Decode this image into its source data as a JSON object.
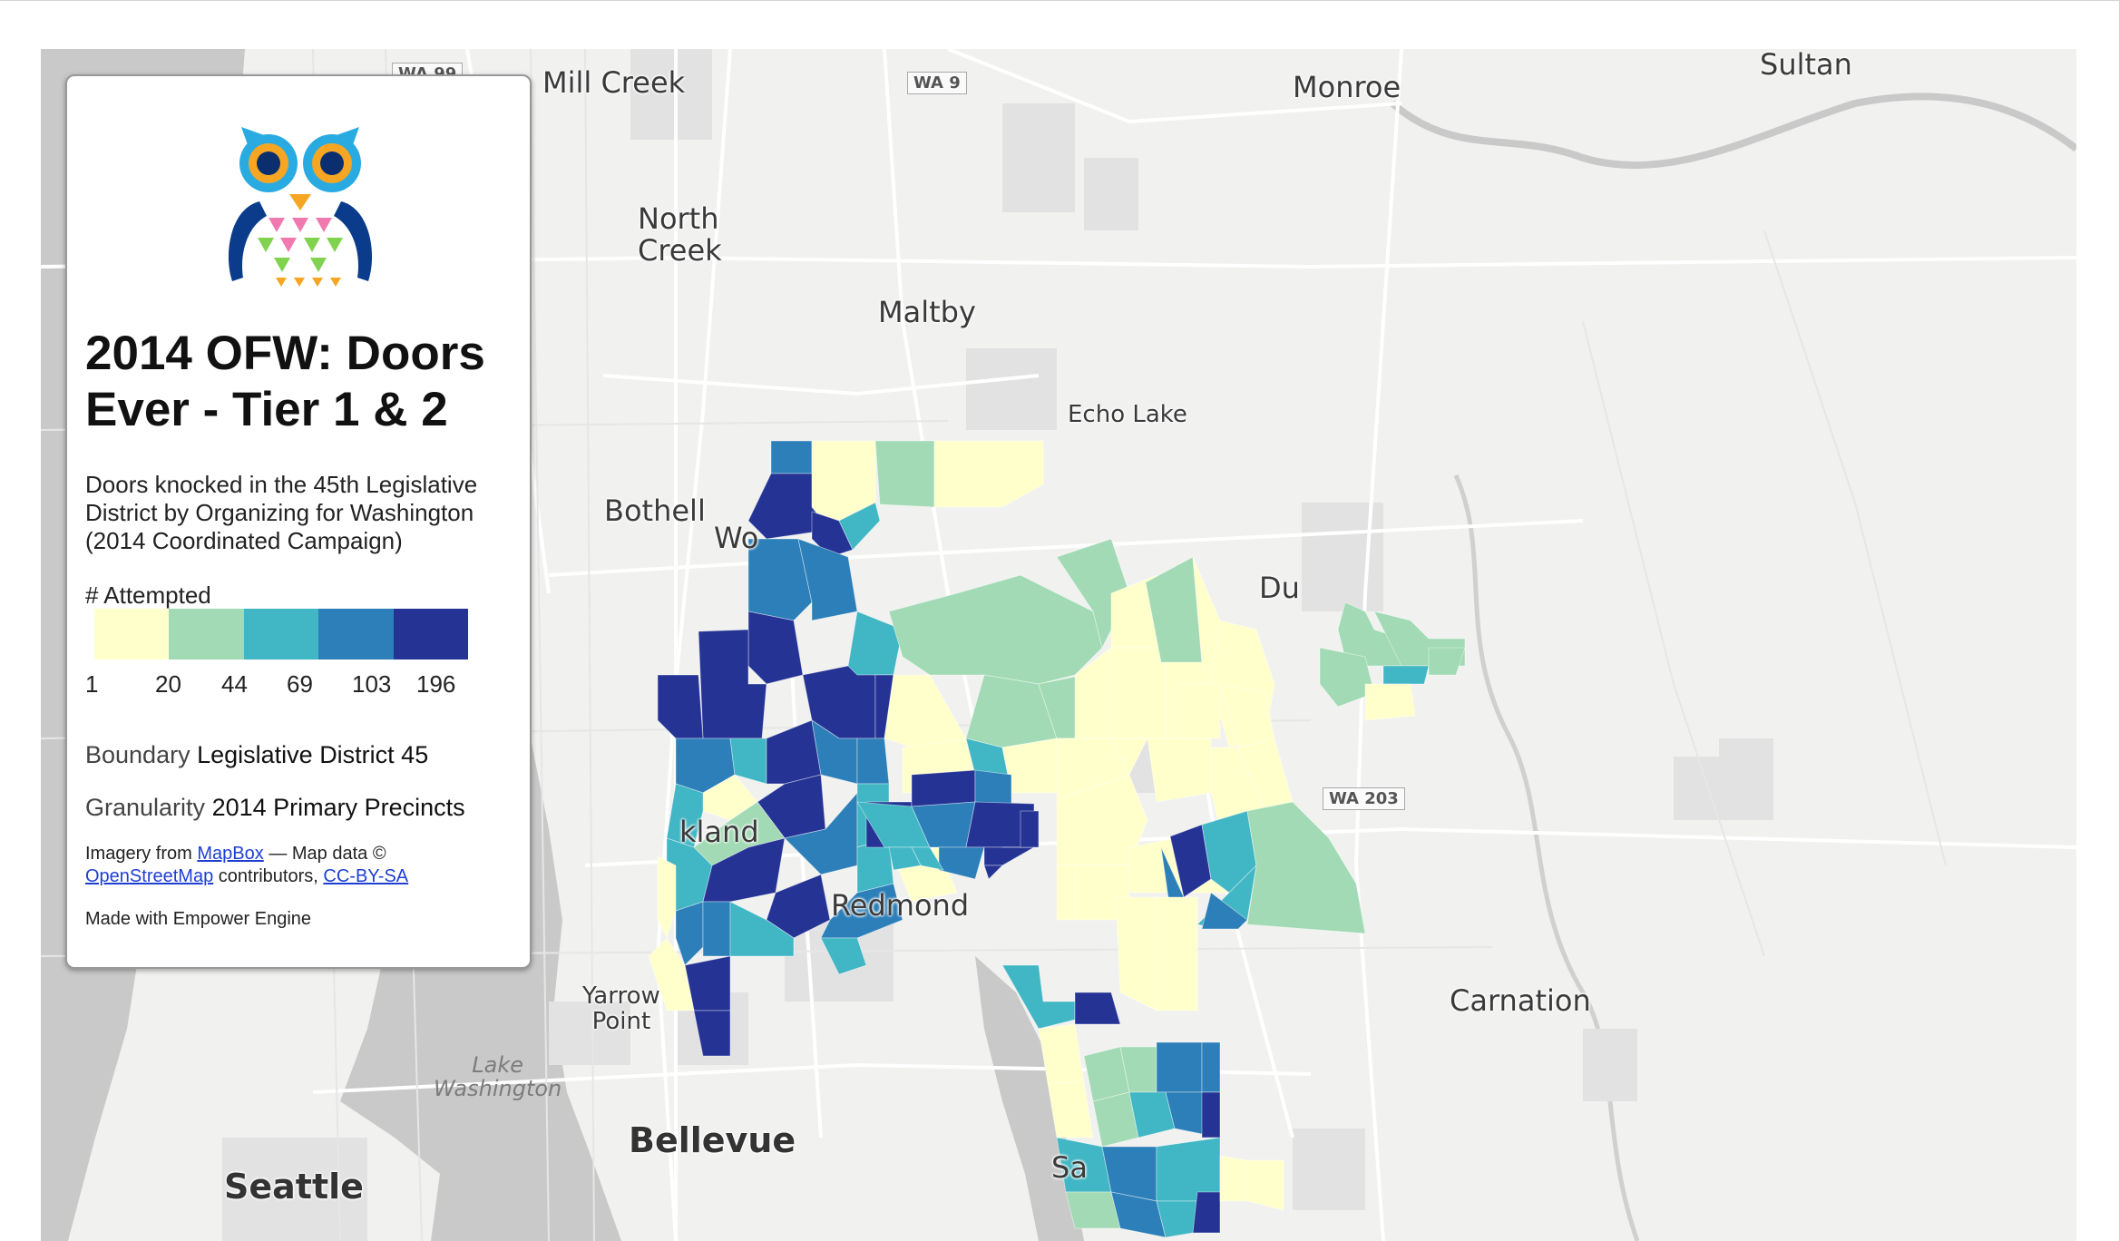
{
  "panel": {
    "title": "2014 OFW: Doors Ever - Tier 1 & 2",
    "subtitle": "Doors knocked in the 45th Legislative District by Organizing for Washington (2014 Coordinated Campaign)",
    "legend": {
      "title": "# Attempted",
      "breaks": [
        "1",
        "20",
        "44",
        "69",
        "103",
        "196"
      ],
      "colors": [
        "#ffffcc",
        "#a1dab4",
        "#41b6c4",
        "#2c7fb8",
        "#253494"
      ]
    },
    "boundary_label": "Boundary",
    "boundary_value": "Legislative District 45",
    "granularity_label": "Granularity",
    "granularity_value": "2014 Primary Precincts",
    "attribution": {
      "imagery_prefix": "Imagery from",
      "mapbox": "MapBox",
      "mapdata": "— Map data ©",
      "osm": "OpenStreetMap",
      "contributors": "contributors,",
      "license": "CC-BY-SA"
    },
    "made_with": "Made with Empower Engine",
    "logo_icon": "owl-logo-icon"
  },
  "map": {
    "places": {
      "mill_creek": "Mill Creek",
      "monroe": "Monroe",
      "sultan": "Sultan",
      "north_creek": "North\nCreek",
      "maltby": "Maltby",
      "echo_lake": "Echo Lake",
      "bothell": "Bothell",
      "woodinville": "Wo",
      "duvall": "Du",
      "kirkland": "kland",
      "redmond": "Redmond",
      "yarrow_point": "Yarrow\nPoint",
      "lake_washington": "Lake\nWashington",
      "carnation": "Carnation",
      "bellevue": "Bellevue",
      "seattle": "Seattle",
      "sammamish": "Sa"
    },
    "shields": {
      "wa99": "WA 99",
      "wa9": "WA 9",
      "wa203": "WA 203"
    }
  }
}
